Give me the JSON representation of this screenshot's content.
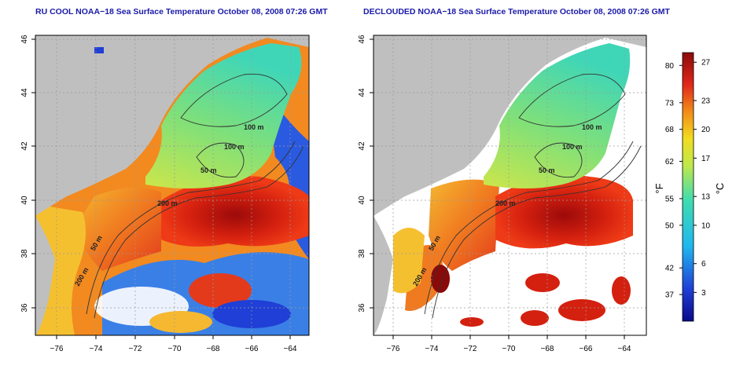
{
  "colors": {
    "land": "#bfbfbf",
    "background": "#ffffff",
    "title": "#1a1aa8",
    "contour": "#333333",
    "grid": "#9a9a9a"
  },
  "panels": [
    {
      "title": "RU COOL NOAA−18 Sea Surface Temperature October 08, 2008 07:26 GMT",
      "x_ticks": [
        "−76",
        "−74",
        "−72",
        "−70",
        "−68",
        "−66",
        "−64"
      ],
      "y_ticks": [
        "46",
        "44",
        "42",
        "40",
        "38",
        "36"
      ],
      "contour_labels": [
        "100 m",
        "100 m",
        "50 m",
        "200 m",
        "50 m",
        "200 m"
      ]
    },
    {
      "title": "DECLOUDED NOAA−18 Sea Surface Temperature October 08, 2008 07:26 GMT",
      "x_ticks": [
        "−76",
        "−74",
        "−72",
        "−70",
        "−68",
        "−66",
        "−64"
      ],
      "y_ticks": [
        "46",
        "44",
        "42",
        "40",
        "38",
        "36"
      ],
      "contour_labels": [
        "100 m",
        "100 m",
        "50 m",
        "200 m",
        "50 m",
        "200 m"
      ]
    }
  ],
  "colorbar": {
    "fahrenheit_label": "°F",
    "celsius_label": "°C",
    "fahrenheit_ticks": [
      "80",
      "73",
      "68",
      "62",
      "55",
      "50",
      "42",
      "37"
    ],
    "celsius_ticks": [
      "27",
      "23",
      "20",
      "17",
      "13",
      "10",
      "6",
      "3"
    ],
    "fahrenheit_values": [
      80,
      73,
      68,
      62,
      55,
      50,
      42,
      37
    ],
    "celsius_values": [
      27,
      23,
      20,
      17,
      13,
      10,
      6,
      3
    ],
    "range_c": [
      0,
      28
    ]
  }
}
